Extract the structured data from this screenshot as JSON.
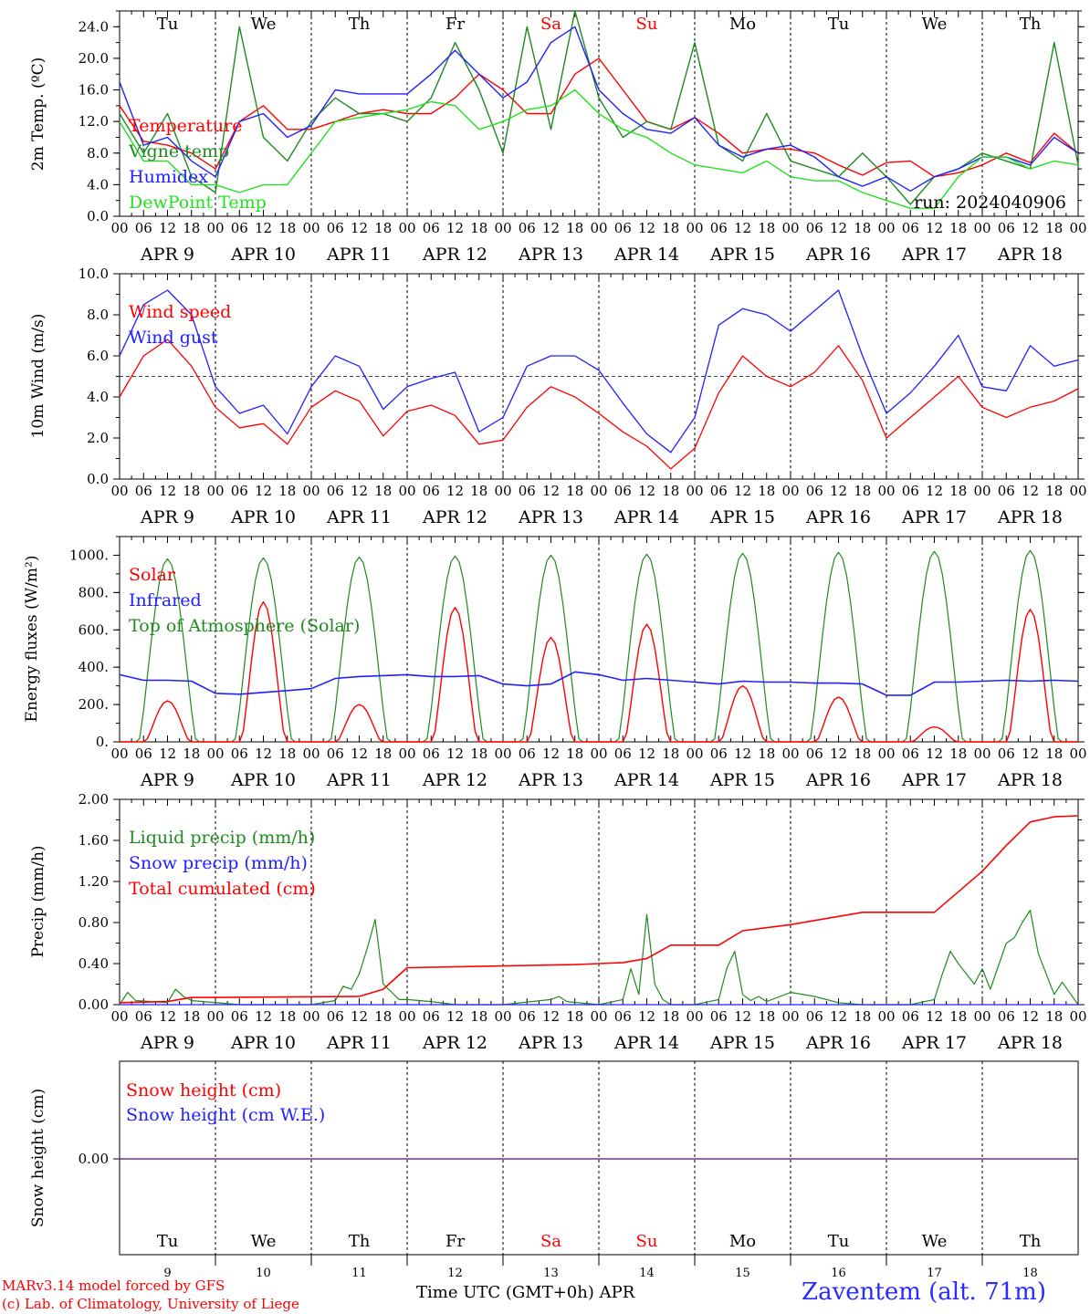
{
  "run_label": "run: 2024040906",
  "x_title": "Time UTC (GMT+0h) APR",
  "station": "Zaventem (alt. 71m)",
  "footer": [
    "MARv3.14 model forced by GFS",
    "(c) Lab. of Climatology, University of Liege"
  ],
  "colors": {
    "red": "#ff0000",
    "blue": "#2020ff",
    "green": "#208a20",
    "lightgreen": "#22e022",
    "purple": "#7a2aa0"
  },
  "time_axis": {
    "hour_ticks": [
      "00",
      "06",
      "12",
      "18"
    ],
    "date_labels": [
      "APR  9",
      "APR 10",
      "APR 11",
      "APR 12",
      "APR 13",
      "APR 14",
      "APR 15",
      "APR 16",
      "APR 17",
      "APR 18"
    ],
    "weekdays": [
      "Tu",
      "We",
      "Th",
      "Fr",
      "Sa",
      "Su",
      "Mo",
      "Tu",
      "We",
      "Th"
    ],
    "weekend_color_days": [
      "Sa",
      "Su"
    ],
    "day_numbers": [
      "9",
      "10",
      "11",
      "12",
      "13",
      "14",
      "15",
      "16",
      "17",
      "18"
    ]
  },
  "chart_data": [
    {
      "type": "line",
      "ylabel": "2m Temp. (ºC)",
      "ylim": [
        0,
        26
      ],
      "yticks": [
        "0.0",
        "4.0",
        "8.0",
        "12.0",
        "16.0",
        "20.0",
        "24.0"
      ],
      "x_unit": "hours since APR 9 00 UTC",
      "series": [
        {
          "name": "Temperature",
          "color": "#ff0000",
          "x": [
            0,
            6,
            12,
            18,
            24,
            30,
            36,
            42,
            48,
            54,
            60,
            66,
            72,
            78,
            84,
            90,
            96,
            102,
            108,
            114,
            120,
            126,
            132,
            138,
            144,
            150,
            156,
            162,
            168,
            174,
            180,
            186,
            192,
            198,
            204,
            210,
            216,
            222,
            228,
            234,
            240
          ],
          "values": [
            14,
            9.5,
            9,
            8,
            6,
            12,
            14,
            11,
            11,
            12,
            13,
            13.5,
            13,
            13,
            15,
            18,
            16,
            13,
            13,
            18,
            20,
            16,
            12,
            11,
            12.5,
            10.5,
            8,
            8.5,
            8.5,
            8,
            6.5,
            5.2,
            6.8,
            7,
            5,
            5.5,
            6.5,
            8,
            6.8,
            10.5,
            8
          ]
        },
        {
          "name": "Vigne temp",
          "color": "#208a20",
          "x": [
            0,
            6,
            12,
            18,
            24,
            30,
            36,
            42,
            48,
            54,
            60,
            66,
            72,
            78,
            84,
            90,
            96,
            102,
            108,
            114,
            120,
            126,
            132,
            138,
            144,
            150,
            156,
            162,
            168,
            174,
            180,
            186,
            192,
            198,
            204,
            210,
            216,
            222,
            228,
            234,
            240
          ],
          "values": [
            13,
            8,
            13,
            5,
            3,
            24,
            10,
            7,
            12,
            15,
            13,
            13,
            12,
            15,
            22,
            16,
            8,
            24,
            11,
            26,
            15,
            10,
            12,
            11,
            22,
            9,
            7,
            13,
            7,
            6,
            5,
            8,
            5,
            1.5,
            5,
            6,
            8,
            7,
            6,
            22,
            6.5
          ]
        },
        {
          "name": "Humidex",
          "color": "#2020ff",
          "x": [
            0,
            6,
            12,
            18,
            24,
            30,
            36,
            42,
            48,
            54,
            60,
            66,
            72,
            78,
            84,
            90,
            96,
            102,
            108,
            114,
            120,
            126,
            132,
            138,
            144,
            150,
            156,
            162,
            168,
            174,
            180,
            186,
            192,
            198,
            204,
            210,
            216,
            222,
            228,
            234,
            240
          ],
          "values": [
            17,
            9,
            10,
            7,
            5,
            12,
            13,
            10,
            11.5,
            16,
            15.5,
            15.5,
            15.5,
            18,
            21,
            18,
            15,
            17,
            22,
            24,
            16,
            13,
            11,
            10.5,
            12.5,
            9,
            7.5,
            8.5,
            9,
            7.5,
            5,
            3.8,
            5,
            3.2,
            5,
            6,
            7.5,
            7.5,
            6.5,
            10,
            8
          ]
        },
        {
          "name": "DewPoint Temp",
          "color": "#22e022",
          "x": [
            0,
            6,
            12,
            18,
            24,
            30,
            36,
            42,
            48,
            54,
            60,
            66,
            72,
            78,
            84,
            90,
            96,
            102,
            108,
            114,
            120,
            126,
            132,
            138,
            144,
            150,
            156,
            162,
            168,
            174,
            180,
            186,
            192,
            198,
            204,
            210,
            216,
            222,
            228,
            234,
            240
          ],
          "values": [
            12,
            7,
            7,
            4,
            4,
            3,
            4,
            4,
            8,
            12,
            12.5,
            13,
            13.5,
            14.5,
            14,
            11,
            12,
            13.5,
            14,
            16,
            13,
            11,
            10,
            8,
            6.5,
            6,
            5.5,
            7,
            5,
            4.5,
            4.5,
            3,
            2,
            1,
            1,
            5,
            7.5,
            7.5,
            6,
            7,
            6.5
          ]
        }
      ],
      "legend_placement": "top-left",
      "annotation": "run: 2024040906"
    },
    {
      "type": "line",
      "ylabel": "10m Wind (m/s)",
      "ylim": [
        0,
        10
      ],
      "yticks": [
        "0.0",
        "2.0",
        "4.0",
        "6.0",
        "8.0",
        "10.0"
      ],
      "reference_line": 5,
      "series": [
        {
          "name": "Wind speed",
          "color": "#ff0000",
          "x": [
            0,
            6,
            12,
            18,
            24,
            30,
            36,
            42,
            48,
            54,
            60,
            66,
            72,
            78,
            84,
            90,
            96,
            102,
            108,
            114,
            120,
            126,
            132,
            138,
            144,
            150,
            156,
            162,
            168,
            174,
            180,
            186,
            192,
            198,
            204,
            210,
            216,
            222,
            228,
            234,
            240
          ],
          "values": [
            4,
            6,
            6.8,
            5.5,
            3.5,
            2.5,
            2.7,
            1.7,
            3.5,
            4.3,
            3.8,
            2.1,
            3.3,
            3.6,
            3.1,
            1.7,
            1.9,
            3.5,
            4.5,
            4,
            3.2,
            2.3,
            1.6,
            0.5,
            1.5,
            4.2,
            6,
            5,
            4.5,
            5.2,
            6.5,
            4.8,
            2,
            3,
            4,
            5,
            3.5,
            3,
            3.5,
            3.8,
            4.4
          ]
        },
        {
          "name": "Wind gust",
          "color": "#2020ff",
          "x": [
            0,
            6,
            12,
            18,
            24,
            30,
            36,
            42,
            48,
            54,
            60,
            66,
            72,
            78,
            84,
            90,
            96,
            102,
            108,
            114,
            120,
            126,
            132,
            138,
            144,
            150,
            156,
            162,
            168,
            174,
            180,
            186,
            192,
            198,
            204,
            210,
            216,
            222,
            228,
            234,
            240
          ],
          "values": [
            6,
            8.5,
            9.2,
            8,
            4.5,
            3.2,
            3.6,
            2.2,
            4.5,
            6,
            5.5,
            3.4,
            4.5,
            4.9,
            5.2,
            2.3,
            3,
            5.5,
            6,
            6,
            5.3,
            3.7,
            2.2,
            1.3,
            3,
            7.5,
            8.3,
            8,
            7.2,
            8.2,
            9.2,
            6,
            3.2,
            4.2,
            5.5,
            7,
            4.5,
            4.3,
            6.5,
            5.5,
            5.8
          ]
        }
      ],
      "legend_placement": "top-left"
    },
    {
      "type": "line",
      "ylabel": "Energy fluxes (W/m²)",
      "ylim": [
        0,
        1100
      ],
      "yticks": [
        "0.",
        "200.",
        "400.",
        "600.",
        "800.",
        "1000."
      ],
      "series": [
        {
          "name": "Solar",
          "color": "#ff0000",
          "daily_peaks": [
            220,
            750,
            200,
            720,
            560,
            630,
            300,
            240,
            80,
            710
          ]
        },
        {
          "name": "Infrared",
          "color": "#2020ff",
          "x": [
            0,
            6,
            12,
            18,
            24,
            30,
            36,
            42,
            48,
            54,
            60,
            66,
            72,
            78,
            84,
            90,
            96,
            102,
            108,
            114,
            120,
            126,
            132,
            138,
            144,
            150,
            156,
            162,
            168,
            174,
            180,
            186,
            192,
            198,
            204,
            210,
            216,
            222,
            228,
            234,
            240
          ],
          "values": [
            360,
            330,
            330,
            325,
            260,
            255,
            265,
            275,
            285,
            340,
            350,
            355,
            360,
            350,
            350,
            355,
            310,
            300,
            310,
            375,
            360,
            330,
            340,
            330,
            320,
            310,
            325,
            320,
            320,
            315,
            315,
            310,
            250,
            250,
            320,
            320,
            325,
            330,
            325,
            330,
            325
          ]
        },
        {
          "name": "Top of Atmosphere (Solar)",
          "color": "#208a20",
          "daily_peaks": [
            980,
            985,
            990,
            995,
            1000,
            1005,
            1010,
            1015,
            1020,
            1025
          ]
        }
      ],
      "legend_placement": "top-left"
    },
    {
      "type": "line",
      "ylabel": "Precip (mm/h)",
      "ylim": [
        0,
        2.0
      ],
      "yticks": [
        "0.00",
        "0.40",
        "0.80",
        "1.20",
        "1.60",
        "2.00"
      ],
      "series": [
        {
          "name": "Liquid precip (mm/h)",
          "color": "#208a20",
          "x": [
            0,
            2,
            4,
            12,
            14,
            16,
            18,
            30,
            36,
            48,
            54,
            56,
            58,
            60,
            62,
            64,
            66,
            70,
            72,
            78,
            84,
            96,
            108,
            110,
            112,
            120,
            126,
            128,
            130,
            132,
            134,
            136,
            138,
            144,
            150,
            152,
            154,
            156,
            158,
            160,
            162,
            168,
            174,
            180,
            186,
            192,
            198,
            204,
            206,
            208,
            210,
            212,
            214,
            216,
            218,
            222,
            224,
            226,
            228,
            230,
            232,
            234,
            236,
            240
          ],
          "values": [
            0,
            0.12,
            0.04,
            0.02,
            0.15,
            0.08,
            0.04,
            0,
            0,
            0,
            0.04,
            0.18,
            0.15,
            0.3,
            0.55,
            0.83,
            0.2,
            0.05,
            0.05,
            0.03,
            0,
            0,
            0.05,
            0.08,
            0.03,
            0,
            0.05,
            0.35,
            0.1,
            0.88,
            0.2,
            0.05,
            0,
            0,
            0.05,
            0.35,
            0.52,
            0.1,
            0.04,
            0.08,
            0.03,
            0.12,
            0.08,
            0.02,
            0,
            0,
            0,
            0.05,
            0.3,
            0.52,
            0.4,
            0.3,
            0.2,
            0.35,
            0.15,
            0.6,
            0.65,
            0.8,
            0.92,
            0.5,
            0.3,
            0.1,
            0.22,
            0
          ]
        },
        {
          "name": "Snow precip (mm/h)",
          "color": "#2020ff",
          "x": [
            0,
            240
          ],
          "values": [
            0,
            0
          ]
        },
        {
          "name": "Total cumulated (cm)",
          "color": "#ff0000",
          "x": [
            0,
            12,
            18,
            24,
            60,
            66,
            72,
            114,
            120,
            126,
            132,
            138,
            144,
            150,
            156,
            168,
            180,
            186,
            192,
            198,
            204,
            210,
            216,
            222,
            228,
            234,
            240
          ],
          "values": [
            0.02,
            0.03,
            0.07,
            0.07,
            0.08,
            0.15,
            0.36,
            0.39,
            0.4,
            0.41,
            0.45,
            0.58,
            0.58,
            0.58,
            0.72,
            0.78,
            0.86,
            0.9,
            0.9,
            0.9,
            0.9,
            1.1,
            1.3,
            1.55,
            1.78,
            1.83,
            1.84
          ]
        }
      ],
      "legend_placement": "top-left"
    },
    {
      "type": "line",
      "ylabel": "Snow height (cm)",
      "yticks": [
        "0.00"
      ],
      "series": [
        {
          "name": "Snow height (cm)",
          "color": "#ff0000",
          "x": [
            0,
            240
          ],
          "values": [
            0,
            0
          ]
        },
        {
          "name": "Snow height (cm W.E.)",
          "color": "#2020ff",
          "x": [
            0,
            240
          ],
          "values": [
            0,
            0
          ]
        }
      ],
      "legend_placement": "top-left"
    }
  ]
}
